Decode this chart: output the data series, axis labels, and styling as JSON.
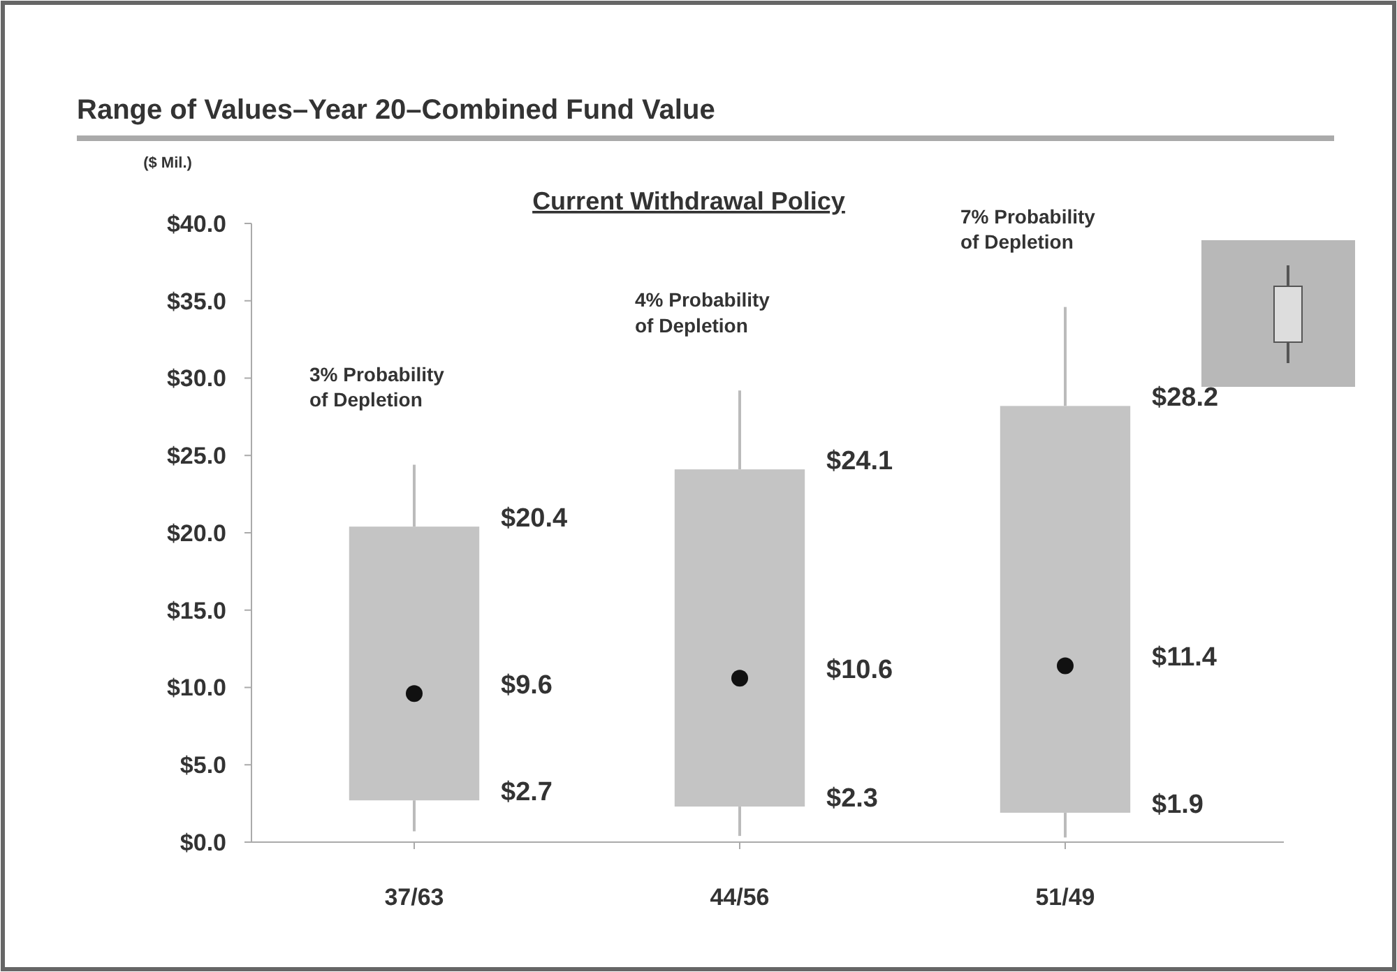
{
  "chart_data": {
    "type": "box",
    "title": "Range of Values–Year 20–Combined Fund Value",
    "subtitle": "Current Withdrawal Policy",
    "ylabel": "($ Mil.)",
    "categories": [
      "37/63",
      "44/56",
      "51/49"
    ],
    "color": "#c4c4c4",
    "boxes": [
      {
        "low": 0.7,
        "q1": 2.7,
        "median": 9.6,
        "q3": 20.4,
        "high": 24.4
      },
      {
        "low": 0.4,
        "q1": 2.3,
        "median": 10.6,
        "q3": 24.1,
        "high": 29.2
      },
      {
        "low": 0.3,
        "q1": 1.9,
        "median": 11.4,
        "q3": 28.2,
        "high": 34.6
      }
    ],
    "ylim": [
      0,
      40
    ],
    "yticks": [
      {
        "value": 0,
        "label": "$0.0"
      },
      {
        "value": 5,
        "label": "$5.0"
      },
      {
        "value": 10,
        "label": "$10.0"
      },
      {
        "value": 15,
        "label": "$15.0"
      },
      {
        "value": 20,
        "label": "$20.0"
      },
      {
        "value": 25,
        "label": "$25.0"
      },
      {
        "value": 30,
        "label": "$30.0"
      },
      {
        "value": 35,
        "label": "$35.0"
      },
      {
        "value": 40,
        "label": "$40.0"
      }
    ],
    "annotations": [
      "$20.4",
      "$9.6",
      "$2.7",
      "$24.1",
      "$10.6",
      "$2.3",
      "$28.2",
      "$11.4",
      "$1.9",
      "3% Probability\nof Depletion",
      "4% Probability\nof Depletion",
      "7% Probability\nof Depletion"
    ]
  }
}
